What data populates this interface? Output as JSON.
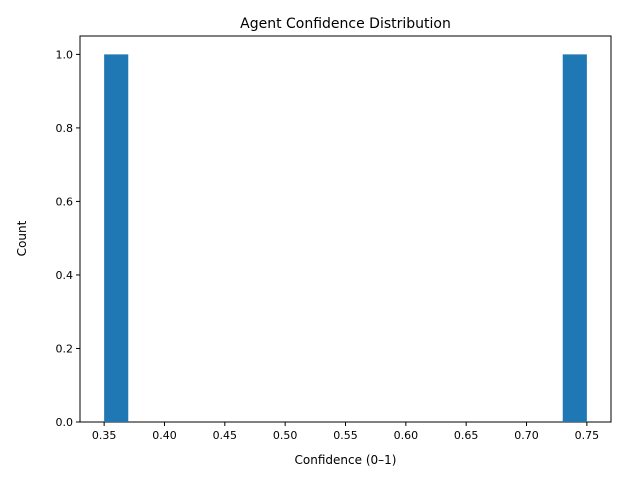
{
  "chart_data": {
    "type": "bar",
    "title": "Agent Confidence Distribution",
    "xlabel": "Confidence (0–1)",
    "ylabel": "Count",
    "xlim": [
      0.33,
      0.77
    ],
    "ylim": [
      0,
      1.05
    ],
    "x_ticks": [
      0.35,
      0.4,
      0.45,
      0.5,
      0.55,
      0.6,
      0.65,
      0.7,
      0.75
    ],
    "x_tick_labels": [
      "0.35",
      "0.40",
      "0.45",
      "0.50",
      "0.55",
      "0.60",
      "0.65",
      "0.70",
      "0.75"
    ],
    "y_ticks": [
      0.0,
      0.2,
      0.4,
      0.6,
      0.8,
      1.0
    ],
    "y_tick_labels": [
      "0.0",
      "0.2",
      "0.4",
      "0.6",
      "0.8",
      "1.0"
    ],
    "grid": false,
    "bar_color": "#1f77b4",
    "bins": [
      {
        "start": 0.35,
        "end": 0.37,
        "count": 1
      },
      {
        "start": 0.73,
        "end": 0.75,
        "count": 1
      }
    ]
  }
}
